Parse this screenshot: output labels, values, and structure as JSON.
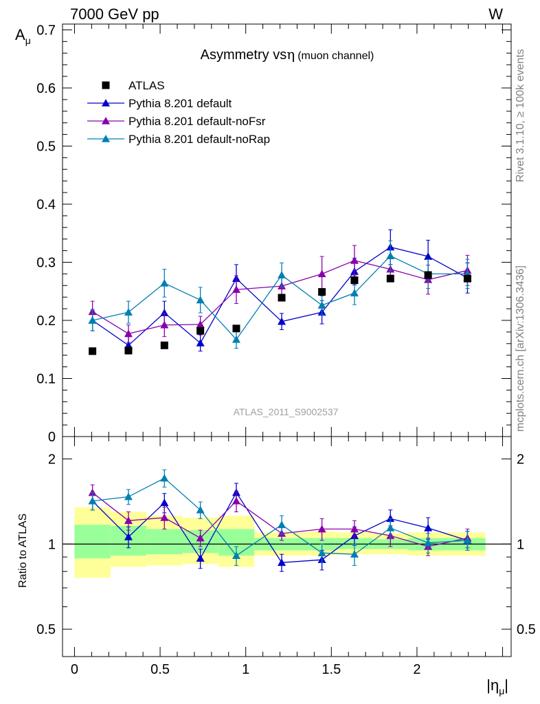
{
  "header": {
    "left": "7000 GeV pp",
    "right": "W"
  },
  "side_labels": {
    "rivet": "Rivet 3.1.10, ≥ 100k events",
    "mcplots": "mcplots.cern.ch [arXiv:1306.3436]"
  },
  "chart_data": {
    "type": "scatter",
    "title_main": "Asymmetry vs",
    "title_eta": "η",
    "title_sub": "(muon channel)",
    "watermark": "ATLAS_2011_S9002537",
    "ylabel_main_sym": "A",
    "ylabel_main_sub": "μ",
    "ylabel_ratio": "Ratio to ATLAS",
    "xlabel_sym": "|η",
    "xlabel_sub": "μ",
    "xlabel_close": "|",
    "xlim": [
      -0.07,
      2.55
    ],
    "ylim_main": [
      0,
      0.71
    ],
    "ylim_ratio": [
      0.4,
      2.4
    ],
    "ratio_scale": "log",
    "x_ticks": [
      0,
      0.5,
      1,
      1.5,
      2
    ],
    "x_tick_labels": [
      "0",
      "0.5",
      "1",
      "1.5",
      "2"
    ],
    "y_ticks_main": [
      0,
      0.1,
      0.2,
      0.3,
      0.4,
      0.5,
      0.6,
      0.7
    ],
    "y_tick_labels_main": [
      "0",
      "0.1",
      "0.2",
      "0.3",
      "0.4",
      "0.5",
      "0.6",
      "0.7"
    ],
    "y_ticks_ratio": [
      0.5,
      1,
      2
    ],
    "y_tick_labels_ratio": [
      "0.5",
      "1",
      "2"
    ],
    "x": [
      0.105,
      0.315,
      0.525,
      0.735,
      0.945,
      1.21,
      1.445,
      1.635,
      1.845,
      2.065,
      2.295
    ],
    "data": {
      "name": "ATLAS",
      "values": [
        0.147,
        0.148,
        0.157,
        0.182,
        0.186,
        0.239,
        0.249,
        0.269,
        0.272,
        0.278,
        0.272
      ],
      "bins": [
        [
          0,
          0.21
        ],
        [
          0.21,
          0.42
        ],
        [
          0.42,
          0.63
        ],
        [
          0.63,
          0.84
        ],
        [
          0.84,
          1.05
        ],
        [
          1.05,
          1.37
        ],
        [
          1.37,
          1.52
        ],
        [
          1.52,
          1.74
        ],
        [
          1.74,
          1.95
        ],
        [
          1.95,
          2.18
        ],
        [
          2.18,
          2.4
        ]
      ],
      "band_yellow": [
        [
          0.76,
          1.35
        ],
        [
          0.83,
          1.3
        ],
        [
          0.84,
          1.26
        ],
        [
          0.85,
          1.24
        ],
        [
          0.83,
          1.26
        ],
        [
          0.91,
          1.1
        ],
        [
          0.91,
          1.11
        ],
        [
          0.92,
          1.1
        ],
        [
          0.92,
          1.09
        ],
        [
          0.91,
          1.1
        ],
        [
          0.91,
          1.1
        ]
      ],
      "band_green": [
        [
          0.89,
          1.17
        ],
        [
          0.91,
          1.16
        ],
        [
          0.92,
          1.13
        ],
        [
          0.93,
          1.12
        ],
        [
          0.91,
          1.13
        ],
        [
          0.95,
          1.05
        ],
        [
          0.95,
          1.05
        ],
        [
          0.96,
          1.05
        ],
        [
          0.96,
          1.04
        ],
        [
          0.95,
          1.05
        ],
        [
          0.95,
          1.05
        ]
      ]
    },
    "series": [
      {
        "name": "Pythia 8.201 default",
        "color": "#0000cc",
        "values": [
          0.2,
          0.157,
          0.213,
          0.161,
          0.272,
          0.198,
          0.214,
          0.284,
          0.326,
          0.31,
          0.273
        ],
        "errors": [
          0.018,
          0.015,
          0.02,
          0.014,
          0.024,
          0.014,
          0.02,
          0.023,
          0.03,
          0.028,
          0.026
        ],
        "ratio": [
          1.42,
          1.06,
          1.4,
          0.89,
          1.52,
          0.86,
          0.88,
          1.07,
          1.23,
          1.14,
          1.03
        ],
        "ratio_errors": [
          0.1,
          0.09,
          0.11,
          0.07,
          0.12,
          0.06,
          0.07,
          0.08,
          0.09,
          0.1,
          0.08
        ]
      },
      {
        "name": "Pythia 8.201 default-noFsr",
        "color": "#8800aa",
        "values": [
          0.215,
          0.177,
          0.192,
          0.193,
          0.253,
          0.259,
          0.28,
          0.303,
          0.288,
          0.27,
          0.286
        ],
        "errors": [
          0.018,
          0.015,
          0.02,
          0.014,
          0.024,
          0.014,
          0.03,
          0.026,
          0.02,
          0.025,
          0.026
        ],
        "ratio": [
          1.52,
          1.21,
          1.24,
          1.05,
          1.42,
          1.09,
          1.13,
          1.13,
          1.07,
          0.98,
          1.05
        ],
        "ratio_errors": [
          0.1,
          0.09,
          0.11,
          0.07,
          0.12,
          0.06,
          0.1,
          0.08,
          0.09,
          0.07,
          0.08
        ]
      },
      {
        "name": "Pythia 8.201 default-noRap",
        "color": "#0080b0",
        "values": [
          0.2,
          0.214,
          0.264,
          0.235,
          0.167,
          0.278,
          0.226,
          0.247,
          0.311,
          0.28,
          0.28
        ],
        "errors": [
          0.018,
          0.019,
          0.024,
          0.022,
          0.015,
          0.021,
          0.016,
          0.02,
          0.026,
          0.025,
          0.025
        ],
        "ratio": [
          1.42,
          1.47,
          1.71,
          1.32,
          0.91,
          1.17,
          0.93,
          0.92,
          1.14,
          1.01,
          1.03
        ],
        "ratio_errors": [
          0.1,
          0.09,
          0.12,
          0.09,
          0.07,
          0.09,
          0.07,
          0.08,
          0.09,
          0.08,
          0.08
        ]
      }
    ],
    "legend": {
      "placement": "top-left",
      "entries": [
        "ATLAS",
        "Pythia 8.201 default",
        "Pythia 8.201 default-noFsr",
        "Pythia 8.201 default-noRap"
      ]
    },
    "colors": {
      "band_yellow": "#ffff99",
      "band_green": "#99ff99",
      "data_marker": "#000000"
    }
  }
}
